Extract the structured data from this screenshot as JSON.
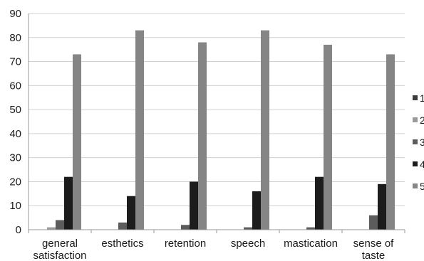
{
  "chart_data": {
    "type": "bar",
    "categories": [
      "general satisfaction",
      "esthetics",
      "retention",
      "speech",
      "mastication",
      "sense of taste"
    ],
    "category_lines": [
      [
        "general",
        "satisfaction"
      ],
      [
        "esthetics"
      ],
      [
        "retention"
      ],
      [
        "speech"
      ],
      [
        "mastication"
      ],
      [
        "sense of",
        "taste"
      ]
    ],
    "series": [
      {
        "name": "1",
        "color": "#3c3c3c",
        "values": [
          0,
          0,
          0,
          0,
          0,
          0
        ]
      },
      {
        "name": "2",
        "color": "#9a9a9a",
        "values": [
          1,
          0,
          0,
          0,
          0,
          0
        ]
      },
      {
        "name": "3",
        "color": "#5c5c5c",
        "values": [
          4,
          3,
          2,
          1,
          1,
          6
        ]
      },
      {
        "name": "4",
        "color": "#1c1c1c",
        "values": [
          22,
          14,
          20,
          16,
          22,
          19
        ]
      },
      {
        "name": "5",
        "color": "#858585",
        "values": [
          73,
          83,
          78,
          83,
          77,
          73
        ]
      }
    ],
    "ylim": [
      0,
      90
    ],
    "yticks": [
      0,
      10,
      20,
      30,
      40,
      50,
      60,
      70,
      80,
      90
    ],
    "grid": true,
    "legend": "right",
    "title": "",
    "xlabel": "",
    "ylabel": ""
  }
}
